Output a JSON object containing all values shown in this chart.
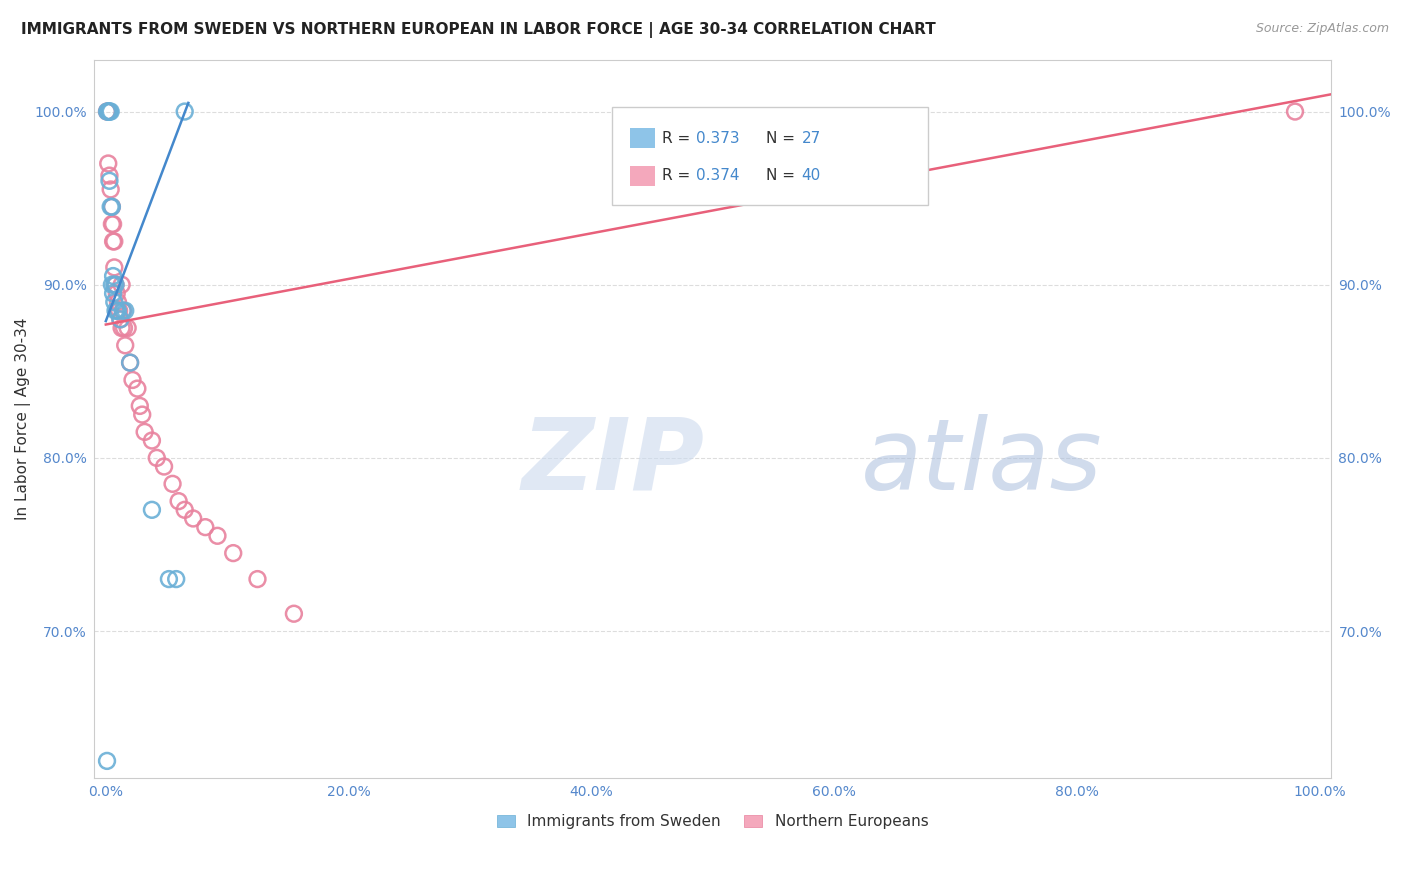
{
  "title": "IMMIGRANTS FROM SWEDEN VS NORTHERN EUROPEAN IN LABOR FORCE | AGE 30-34 CORRELATION CHART",
  "source": "Source: ZipAtlas.com",
  "ylabel": "In Labor Force | Age 30-34",
  "xlim": [
    -0.01,
    1.01
  ],
  "ylim": [
    0.615,
    1.03
  ],
  "xticks": [
    0.0,
    0.2,
    0.4,
    0.6,
    0.8,
    1.0
  ],
  "xtick_labels": [
    "0.0%",
    "20.0%",
    "40.0%",
    "60.0%",
    "80.0%",
    "100.0%"
  ],
  "yticks": [
    0.7,
    0.8,
    0.9,
    1.0
  ],
  "ytick_labels": [
    "70.0%",
    "80.0%",
    "90.0%",
    "100.0%"
  ],
  "legend_R_sweden": "0.373",
  "legend_N_sweden": "27",
  "legend_R_northern": "0.374",
  "legend_N_northern": "40",
  "sweden_color": "#8ec4e8",
  "sweden_edge_color": "#6aafd6",
  "northern_color": "#f4a8bc",
  "northern_edge_color": "#e8829e",
  "sweden_line_color": "#4488cc",
  "northern_line_color": "#e8607a",
  "tick_color": "#5588cc",
  "ylabel_color": "#333333",
  "title_color": "#222222",
  "source_color": "#999999",
  "grid_color": "#dddddd",
  "legend_label_color": "#333333",
  "legend_value_color": "#4488cc",
  "sweden_x": [
    0.001,
    0.001,
    0.002,
    0.002,
    0.003,
    0.003,
    0.003,
    0.004,
    0.004,
    0.005,
    0.005,
    0.006,
    0.006,
    0.007,
    0.007,
    0.008,
    0.008,
    0.009,
    0.01,
    0.012,
    0.014,
    0.016,
    0.02,
    0.038,
    0.052,
    0.058,
    0.065
  ],
  "sweden_y": [
    0.625,
    1.0,
    1.0,
    1.0,
    1.0,
    1.0,
    0.96,
    1.0,
    0.945,
    0.945,
    0.9,
    0.895,
    0.905,
    0.89,
    0.9,
    0.885,
    0.9,
    0.885,
    0.885,
    0.88,
    0.885,
    0.885,
    0.855,
    0.77,
    0.73,
    0.73,
    1.0
  ],
  "northern_x": [
    0.001,
    0.002,
    0.003,
    0.004,
    0.005,
    0.005,
    0.006,
    0.006,
    0.007,
    0.007,
    0.008,
    0.009,
    0.01,
    0.011,
    0.012,
    0.013,
    0.013,
    0.014,
    0.015,
    0.016,
    0.018,
    0.02,
    0.022,
    0.026,
    0.028,
    0.03,
    0.032,
    0.038,
    0.042,
    0.048,
    0.055,
    0.06,
    0.065,
    0.072,
    0.082,
    0.092,
    0.105,
    0.125,
    0.155,
    0.98
  ],
  "northern_y": [
    1.0,
    0.97,
    0.963,
    0.955,
    0.945,
    0.935,
    0.935,
    0.925,
    0.925,
    0.91,
    0.9,
    0.895,
    0.89,
    0.885,
    0.88,
    0.9,
    0.875,
    0.885,
    0.875,
    0.865,
    0.875,
    0.855,
    0.845,
    0.84,
    0.83,
    0.825,
    0.815,
    0.81,
    0.8,
    0.795,
    0.785,
    0.775,
    0.77,
    0.765,
    0.76,
    0.755,
    0.745,
    0.73,
    0.71,
    1.0
  ],
  "sweden_line_x": [
    0.0,
    0.068
  ],
  "sweden_line_y": [
    0.879,
    1.005
  ],
  "northern_line_x": [
    0.0,
    1.01
  ],
  "northern_line_y": [
    0.877,
    1.01
  ]
}
